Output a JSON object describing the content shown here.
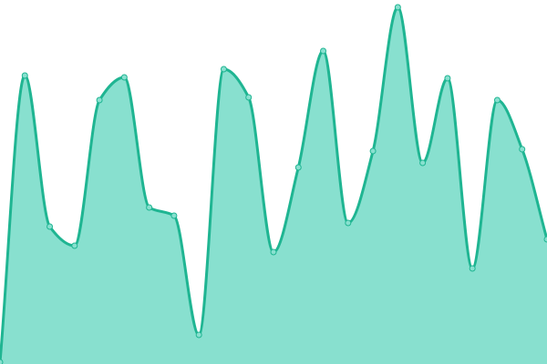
{
  "chart_data": {
    "type": "area",
    "line_color": "#1fb592",
    "fill_color": "#88e0cf",
    "values": [
      2,
      317,
      151,
      130,
      290,
      315,
      172,
      163,
      32,
      324,
      293,
      123,
      216,
      344,
      155,
      234,
      392,
      221,
      314,
      105,
      290,
      236,
      137
    ],
    "ylim": [
      0,
      400
    ]
  }
}
